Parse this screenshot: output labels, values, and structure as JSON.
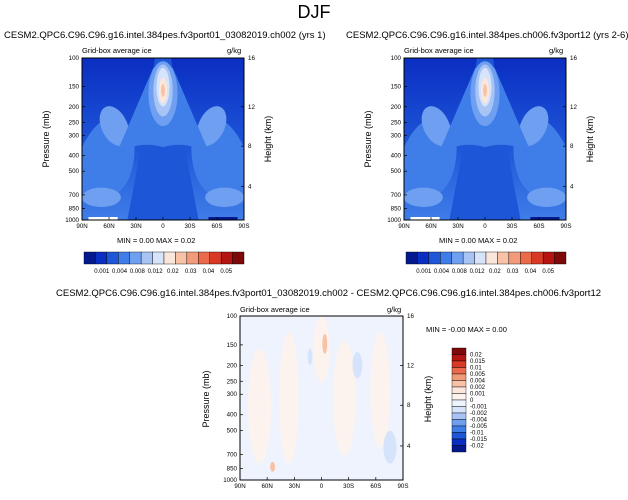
{
  "page": {
    "title": "DJF"
  },
  "chart_data": [
    {
      "type": "heatmap",
      "title": "CESM2.QPC6.C96.C96.g16.intel.384pes.fv3port01_03082019.ch002 (yrs 1)",
      "subtitle_left": "Grid-box average ice",
      "subtitle_right": "g/kg",
      "xlabel": "",
      "ylabel": "Pressure (mb)",
      "ylabel_right": "Height (km)",
      "x_ticks": [
        "90N",
        "60N",
        "30N",
        "0",
        "30S",
        "60S",
        "90S"
      ],
      "y_ticks": [
        "100",
        "150",
        "200",
        "250",
        "300",
        "400",
        "500",
        "700",
        "850",
        "1000"
      ],
      "y_ticks_right": [
        "16",
        "12",
        "8",
        "4"
      ],
      "ylim": [
        1000,
        100
      ],
      "stats": "MIN =  0.00  MAX =  0.02",
      "min": 0.0,
      "max": 0.02
    },
    {
      "type": "heatmap",
      "title": "CESM2.QPC6.C96.C96.g16.intel.384pes.ch006.fv3port12 (yrs 2-6)",
      "subtitle_left": "Grid-box average ice",
      "subtitle_right": "g/kg",
      "xlabel": "",
      "ylabel": "Pressure (mb)",
      "ylabel_right": "Height (km)",
      "x_ticks": [
        "90N",
        "60N",
        "30N",
        "0",
        "30S",
        "60S",
        "90S"
      ],
      "y_ticks": [
        "100",
        "150",
        "200",
        "250",
        "300",
        "400",
        "500",
        "700",
        "850",
        "1000"
      ],
      "y_ticks_right": [
        "16",
        "12",
        "8",
        "4"
      ],
      "ylim": [
        1000,
        100
      ],
      "stats": "MIN =  0.00  MAX =  0.02",
      "min": 0.0,
      "max": 0.02
    },
    {
      "type": "heatmap",
      "title": "CESM2.QPC6.C96.C96.g16.intel.384pes.fv3port01_03082019.ch002 - CESM2.QPC6.C96.C96.g16.intel.384pes.ch006.fv3port12",
      "subtitle_left": "Grid-box average ice",
      "subtitle_right": "g/kg",
      "xlabel": "",
      "ylabel": "Pressure (mb)",
      "ylabel_right": "Height (km)",
      "x_ticks": [
        "90N",
        "60N",
        "30N",
        "0",
        "30S",
        "60S",
        "90S"
      ],
      "y_ticks": [
        "100",
        "150",
        "200",
        "250",
        "300",
        "400",
        "500",
        "700",
        "850",
        "1000"
      ],
      "y_ticks_right": [
        "16",
        "12",
        "8",
        "4"
      ],
      "ylim": [
        1000,
        100
      ],
      "stats": "MIN = -0.00  MAX =  0.00",
      "min": -0.0,
      "max": 0.0
    }
  ],
  "colorbar_main": {
    "labels": [
      "0.001",
      "0.004",
      "0.008",
      "0.012",
      "0.02",
      "0.03",
      "0.04",
      "0.05"
    ],
    "colors": [
      "#05198f",
      "#0a2ec2",
      "#1e56d8",
      "#3f7de8",
      "#6f9ff0",
      "#a7c4f5",
      "#d6e4fb",
      "#fbe6dc",
      "#f7c2a6",
      "#f29b7a",
      "#ea6a4b",
      "#d93a26",
      "#b51510",
      "#7d0a08"
    ]
  },
  "colorbar_diff": {
    "labels": [
      "0.02",
      "0.015",
      "0.01",
      "0.005",
      "0.004",
      "0.002",
      "0.001",
      "0",
      "-0.001",
      "-0.002",
      "-0.004",
      "-0.005",
      "-0.01",
      "-0.015",
      "-0.02"
    ],
    "colors": [
      "#7d0a08",
      "#b51510",
      "#d93a26",
      "#ea6a4b",
      "#f29b7a",
      "#f7c2a6",
      "#fbe6dc",
      "#fdf3ee",
      "#eef3fd",
      "#d6e4fb",
      "#a7c4f5",
      "#6f9ff0",
      "#3f7de8",
      "#1e56d8",
      "#0a2ec2",
      "#05198f"
    ]
  }
}
